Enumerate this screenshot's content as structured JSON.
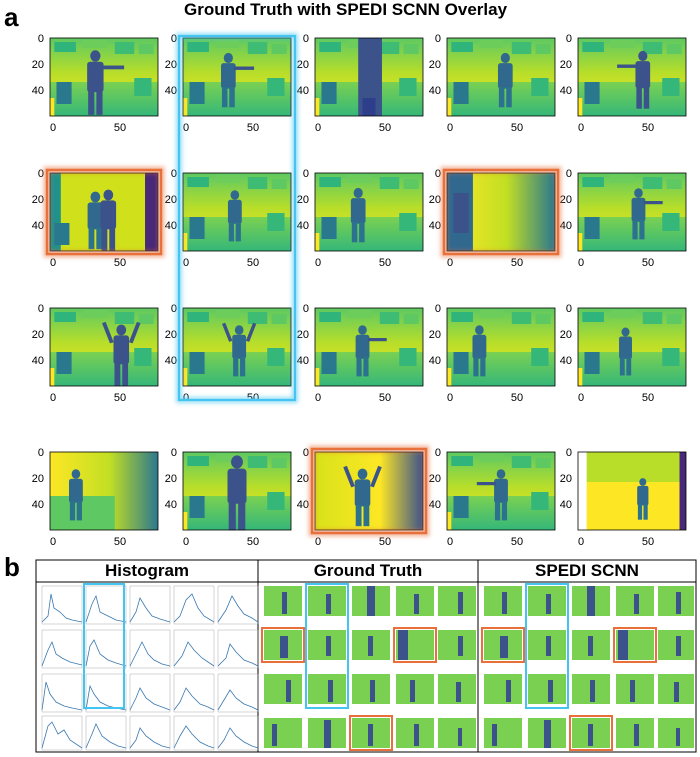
{
  "panel_a": {
    "letter": "a",
    "title": "Ground Truth with SPEDI SCNN Overlay",
    "x_ticks": [
      "0",
      "50"
    ],
    "y_ticks": [
      "0",
      "20",
      "40"
    ],
    "blue_highlight_column": 2,
    "orange_highlight_cells": [
      [
        2,
        1
      ],
      [
        2,
        4
      ],
      [
        4,
        3
      ]
    ]
  },
  "panel_b": {
    "letter": "b",
    "headers": [
      "Histogram",
      "Ground Truth",
      "SPEDI SCNN"
    ]
  },
  "colors": {
    "blue_highlight": "#44c4f0",
    "orange_highlight": "#e8703a",
    "viridis_low": "#3b528b",
    "viridis_mid": "#21918c",
    "viridis_high": "#fde725",
    "histogram_line": "#3a78b0"
  },
  "icons": [
    "depth-map-thumbnail",
    "histogram-plot"
  ]
}
